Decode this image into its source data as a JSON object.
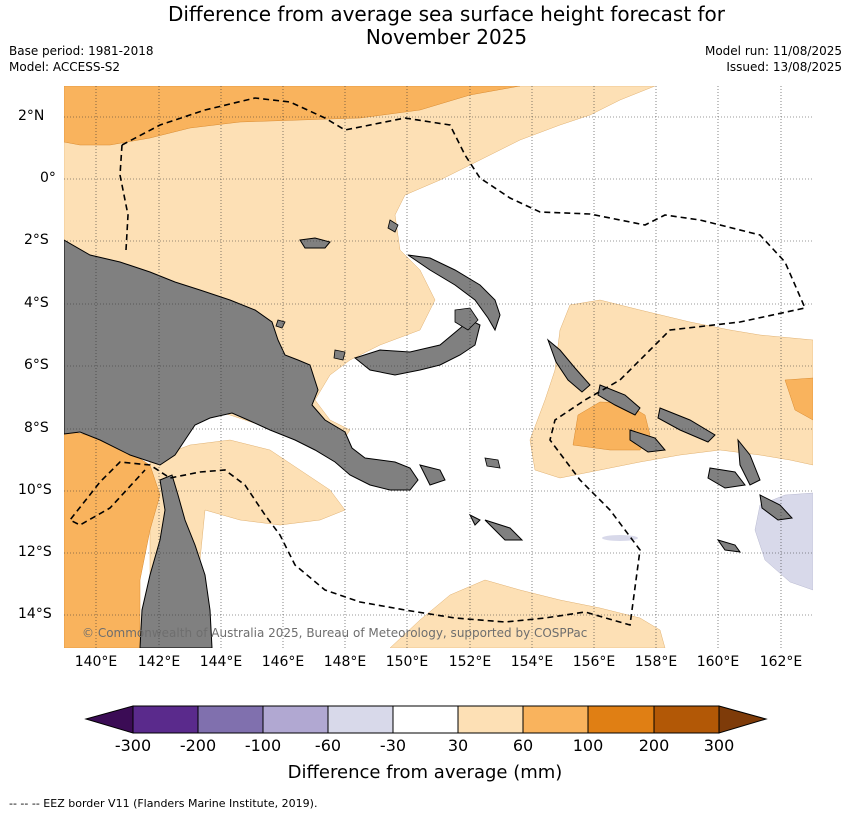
{
  "title_line1": "Difference from average sea surface height forecast for",
  "title_line2": "November 2025",
  "base_period": "Base period: 1981-2018",
  "model": "Model: ACCESS-S2",
  "model_run": "Model run: 11/08/2025",
  "issued": "Issued: 13/08/2025",
  "copyright": "© Commonwealth of Australia 2025, Bureau of Meteorology, supported by COSPPac",
  "lat_labels": [
    "2°N",
    "0°",
    "2°S",
    "4°S",
    "6°S",
    "8°S",
    "10°S",
    "12°S",
    "14°S"
  ],
  "lon_labels": [
    "140°E",
    "142°E",
    "144°E",
    "146°E",
    "148°E",
    "150°E",
    "152°E",
    "154°E",
    "156°E",
    "158°E",
    "160°E",
    "162°E"
  ],
  "colorbar": {
    "ticks": [
      "-300",
      "-200",
      "-100",
      "-60",
      "-30",
      "30",
      "60",
      "100",
      "200",
      "300"
    ],
    "colors": [
      "#3b0c55",
      "#5a2a8c",
      "#8070ae",
      "#b1a8d2",
      "#d8d9ea",
      "#ffffff",
      "#fde0b5",
      "#f9b35d",
      "#e07f14",
      "#b25806",
      "#7e3b09"
    ],
    "label": "Difference from average (mm)"
  },
  "legend_footer": "--  --  -- EEZ border V11 (Flanders Marine Institute, 2019).",
  "colors": {
    "land": "#808080",
    "anomaly_30_60": "#fde0b5",
    "anomaly_60_100": "#f9b35d",
    "anomaly_neg_30_60": "#d8d9ea"
  }
}
